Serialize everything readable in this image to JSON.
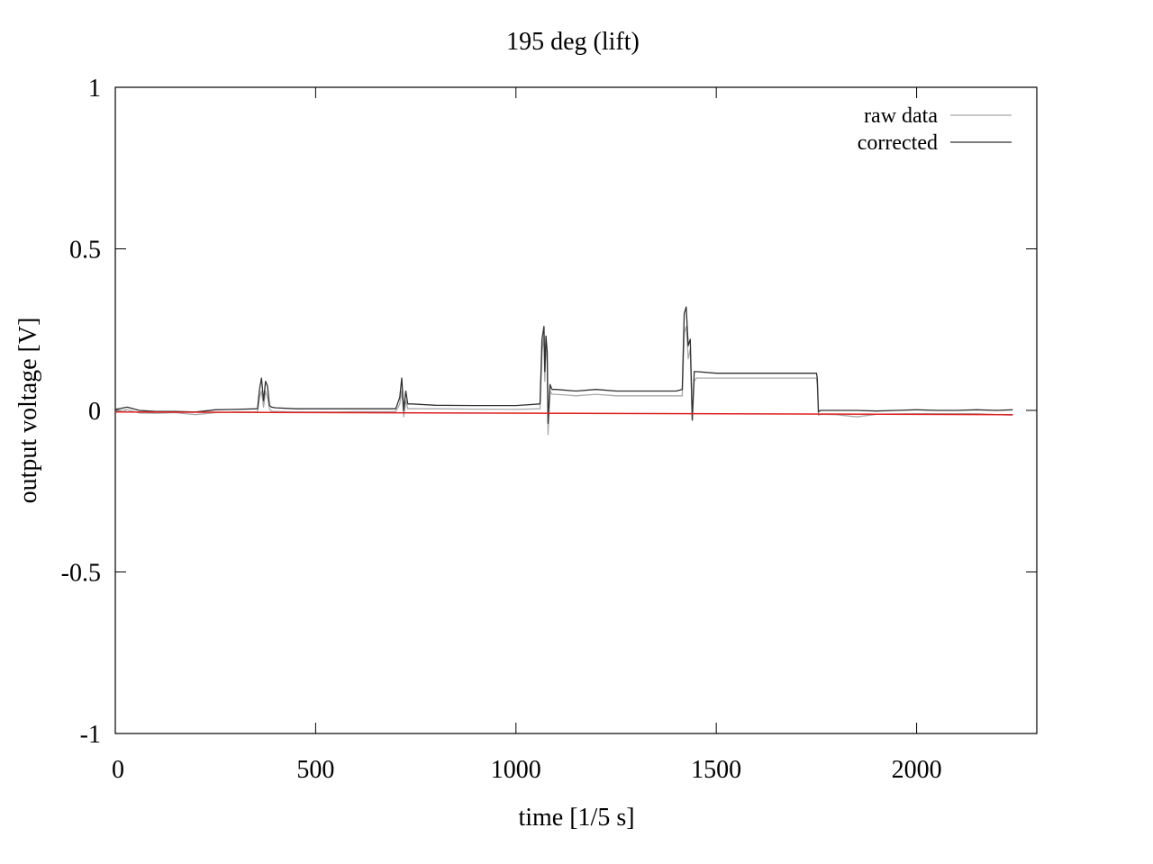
{
  "chart_data": {
    "type": "line",
    "title": "195 deg (lift)",
    "xlabel": "time [1/5 s]",
    "ylabel": "output voltage [V]",
    "xlim": [
      0,
      2300
    ],
    "ylim": [
      -1,
      1
    ],
    "xticks": [
      0,
      500,
      1000,
      1500,
      2000
    ],
    "xtick_labels": [
      "0",
      "500",
      "1000",
      "1500",
      "2000"
    ],
    "yticks": [
      -1,
      -0.5,
      0,
      0.5,
      1
    ],
    "ytick_labels": [
      "-1",
      "-0.5",
      "0",
      "0.5",
      "1"
    ],
    "grid": false,
    "legend_position": "top-right",
    "series": [
      {
        "name": "raw data",
        "color": "#a8a8a8",
        "x": [
          0,
          30,
          60,
          100,
          150,
          200,
          250,
          300,
          355,
          360,
          365,
          370,
          375,
          380,
          385,
          390,
          400,
          450,
          500,
          550,
          600,
          650,
          700,
          710,
          715,
          720,
          725,
          730,
          740,
          800,
          900,
          1000,
          1060,
          1065,
          1070,
          1072,
          1075,
          1078,
          1080,
          1085,
          1090,
          1100,
          1150,
          1200,
          1250,
          1300,
          1350,
          1400,
          1415,
          1420,
          1425,
          1430,
          1435,
          1440,
          1445,
          1450,
          1500,
          1550,
          1600,
          1650,
          1700,
          1750,
          1752,
          1755,
          1760,
          1800,
          1850,
          1900,
          1950,
          2000,
          2050,
          2100,
          2150,
          2200,
          2240
        ],
        "y": [
          -0.003,
          0.002,
          -0.008,
          -0.009,
          -0.007,
          -0.013,
          -0.007,
          -0.005,
          -0.005,
          0.04,
          0.06,
          0.01,
          0.06,
          0.04,
          0.005,
          -0.003,
          -0.003,
          -0.005,
          -0.005,
          -0.005,
          -0.004,
          -0.004,
          -0.004,
          0.02,
          0.06,
          -0.02,
          0.03,
          0.005,
          0.005,
          0.005,
          0.004,
          0.003,
          0.005,
          0.18,
          0.23,
          0.09,
          0.2,
          0.15,
          -0.075,
          0.06,
          0.05,
          0.05,
          0.045,
          0.05,
          0.045,
          0.045,
          0.045,
          0.045,
          0.045,
          0.24,
          0.26,
          0.16,
          0.19,
          -0.03,
          0.09,
          0.1,
          0.1,
          0.1,
          0.1,
          0.1,
          0.1,
          0.1,
          0.08,
          -0.015,
          -0.012,
          -0.013,
          -0.02,
          -0.012,
          -0.011,
          -0.01,
          -0.01,
          -0.01,
          -0.01,
          -0.013,
          -0.015
        ]
      },
      {
        "name": "corrected",
        "color": "#303030",
        "x": [
          0,
          30,
          60,
          100,
          150,
          200,
          250,
          300,
          355,
          360,
          365,
          370,
          375,
          380,
          385,
          390,
          400,
          450,
          500,
          550,
          600,
          650,
          700,
          710,
          715,
          720,
          725,
          730,
          740,
          800,
          900,
          1000,
          1060,
          1065,
          1070,
          1072,
          1075,
          1078,
          1080,
          1085,
          1090,
          1100,
          1150,
          1200,
          1250,
          1300,
          1350,
          1400,
          1415,
          1420,
          1425,
          1430,
          1435,
          1440,
          1445,
          1450,
          1500,
          1550,
          1600,
          1650,
          1700,
          1750,
          1752,
          1755,
          1760,
          1800,
          1850,
          1900,
          1950,
          2000,
          2050,
          2100,
          2150,
          2200,
          2240
        ],
        "y": [
          0.003,
          0.01,
          0.0,
          -0.003,
          -0.003,
          -0.005,
          0.002,
          0.003,
          0.005,
          0.065,
          0.1,
          0.03,
          0.09,
          0.075,
          0.015,
          0.01,
          0.008,
          0.005,
          0.005,
          0.005,
          0.005,
          0.005,
          0.005,
          0.04,
          0.1,
          0.0,
          0.06,
          0.02,
          0.02,
          0.016,
          0.015,
          0.015,
          0.02,
          0.22,
          0.26,
          0.12,
          0.23,
          0.18,
          -0.04,
          0.08,
          0.065,
          0.065,
          0.06,
          0.065,
          0.06,
          0.06,
          0.06,
          0.06,
          0.065,
          0.3,
          0.32,
          0.2,
          0.22,
          -0.03,
          0.12,
          0.12,
          0.115,
          0.115,
          0.115,
          0.115,
          0.115,
          0.115,
          0.1,
          -0.005,
          0.0,
          0.0,
          0.0,
          -0.002,
          0.0,
          0.002,
          0.0,
          0.0,
          0.002,
          0.0,
          0.002
        ]
      },
      {
        "name": "",
        "color": "#e02020",
        "x": [
          0,
          2240
        ],
        "y": [
          -0.005,
          -0.013
        ]
      }
    ]
  }
}
